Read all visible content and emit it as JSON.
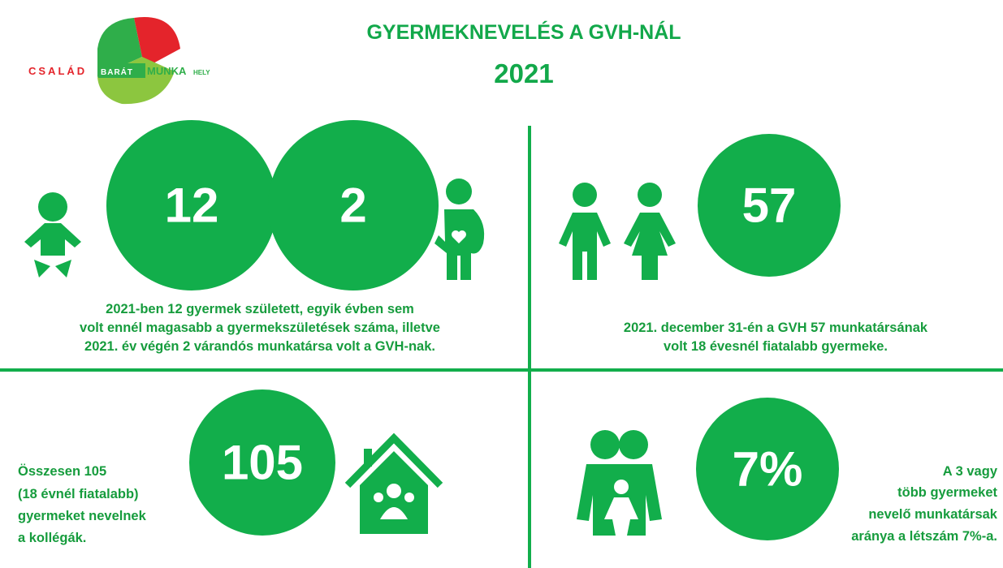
{
  "logo": {
    "part1": "CSALÁD",
    "part2": "BARÁT",
    "part3": "MUNKA",
    "part4": "HELY"
  },
  "header": {
    "title": "GYERMEKNEVELÉS A GVH-NÁL",
    "year": "2021"
  },
  "panels": [
    {
      "figures": [
        "12",
        "2"
      ],
      "lines": [
        "2021-ben 12 gyermek született, egyik évben sem",
        "volt ennél magasabb a gyermekszületések száma, illetve",
        "2021. év végén 2 várandós munkatársa volt a GVH-nak."
      ]
    },
    {
      "figures": [
        "57"
      ],
      "lines": [
        "2021. december 31-én a GVH 57 munkatársának",
        "volt 18 évesnél fiatalabb gyermeke."
      ]
    },
    {
      "figures": [
        "105"
      ],
      "lines": [
        "Összesen 105",
        "(18 évnél fiatalabb)",
        "gyermeket nevelnek",
        "a kollégák."
      ]
    },
    {
      "figures": [
        "7%"
      ],
      "lines": [
        "A 3 vagy",
        "több gyermeket",
        "nevelő munkatársak",
        "aránya a létszám 7%-a."
      ]
    }
  ]
}
